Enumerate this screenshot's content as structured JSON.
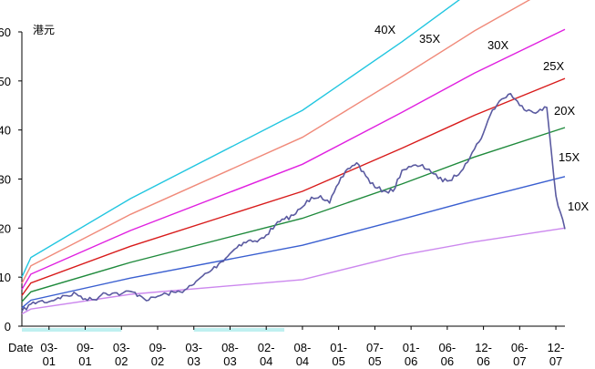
{
  "chart_data": {
    "type": "line",
    "title": "",
    "ylabel": "港元",
    "xlabel": "",
    "x_axis_prefix": "Date",
    "ylim": [
      0,
      60
    ],
    "yticks": [
      0,
      10,
      20,
      30,
      40,
      50,
      60
    ],
    "ytick_labels": [
      "0",
      "10",
      "20",
      "30",
      "40",
      "50",
      "60"
    ],
    "x_index_range": [
      0,
      60
    ],
    "categories": [
      {
        "top": "03-",
        "bottom": "01"
      },
      {
        "top": "09-",
        "bottom": "01"
      },
      {
        "top": "03-",
        "bottom": "02"
      },
      {
        "top": "09-",
        "bottom": "02"
      },
      {
        "top": "03-",
        "bottom": "03"
      },
      {
        "top": "08-",
        "bottom": "03"
      },
      {
        "top": "02-",
        "bottom": "04"
      },
      {
        "top": "08-",
        "bottom": "04"
      },
      {
        "top": "01-",
        "bottom": "05"
      },
      {
        "top": "07-",
        "bottom": "05"
      },
      {
        "top": "01-",
        "bottom": "06"
      },
      {
        "top": "06-",
        "bottom": "06"
      },
      {
        "top": "12-",
        "bottom": "06"
      },
      {
        "top": "06-",
        "bottom": "07"
      },
      {
        "top": "12-",
        "bottom": "07"
      }
    ],
    "category_positions": [
      3,
      7,
      11,
      15,
      19,
      23,
      27,
      31,
      35,
      39,
      43,
      47,
      51,
      55,
      59
    ],
    "highlight_ranges": [
      [
        0,
        11
      ],
      [
        19,
        29
      ]
    ],
    "band_x": [
      0,
      1,
      12,
      31,
      42,
      50,
      60
    ],
    "bands": [
      {
        "name": "10X",
        "color": "#cc88ee",
        "values": [
          2.5,
          3.5,
          6.5,
          9.5,
          14.5,
          17.2,
          20
        ]
      },
      {
        "name": "15X",
        "color": "#3a5fd0",
        "values": [
          3.75,
          5.3,
          9.8,
          16.5,
          21.8,
          25.8,
          30.5
        ]
      },
      {
        "name": "20X",
        "color": "#1f8a3c",
        "values": [
          5,
          7,
          13,
          22,
          29,
          34.5,
          40.5
        ]
      },
      {
        "name": "25X",
        "color": "#d81b1b",
        "values": [
          6.25,
          8.8,
          16.3,
          27.5,
          36.3,
          43,
          50.5
        ]
      },
      {
        "name": "30X",
        "color": "#e020e0",
        "values": [
          7.5,
          10.6,
          19.5,
          33,
          43.6,
          51.6,
          60.5
        ]
      },
      {
        "name": "35X",
        "color": "#f08a7a",
        "values": [
          8.75,
          12.3,
          22.8,
          38.5,
          50.9,
          60.2,
          70.6
        ]
      },
      {
        "name": "40X",
        "color": "#22c6e0",
        "values": [
          10,
          14,
          26,
          44,
          58,
          68.8,
          80.7
        ]
      }
    ],
    "price_series": {
      "name": "",
      "color": "#5a5aa0",
      "x": [
        0,
        1,
        2,
        3,
        4,
        5,
        6,
        7,
        8,
        9,
        10,
        11,
        12,
        13,
        14,
        15,
        16,
        17,
        18,
        19,
        20,
        21,
        22,
        23,
        24,
        25,
        26,
        27,
        28,
        29,
        30,
        31,
        32,
        33,
        34,
        35,
        36,
        37,
        38,
        39,
        40,
        41,
        42,
        43,
        44,
        45,
        46,
        47,
        48,
        49,
        50,
        51,
        52,
        53,
        54,
        55,
        56,
        57,
        58,
        59,
        60
      ],
      "values": [
        3,
        4.5,
        5.1,
        5,
        5.8,
        6.2,
        6.6,
        5.6,
        5.4,
        6.8,
        6.7,
        6.6,
        7.1,
        6.3,
        5.3,
        6.1,
        6.6,
        6.9,
        7.4,
        8.5,
        10.3,
        11.5,
        13.1,
        14.8,
        16.6,
        17.4,
        17.2,
        18.6,
        20.6,
        21.8,
        22.6,
        24.3,
        26.3,
        26.6,
        25.1,
        29.1,
        32.1,
        33.3,
        30.6,
        28.3,
        27.6,
        27.5,
        31.8,
        32.5,
        32.7,
        32,
        30.1,
        29.6,
        30.6,
        33.1,
        36.1,
        39.4,
        44.1,
        46.3,
        47.4,
        45,
        44.1,
        43.7,
        44.6,
        26.6,
        19.8
      ]
    }
  }
}
